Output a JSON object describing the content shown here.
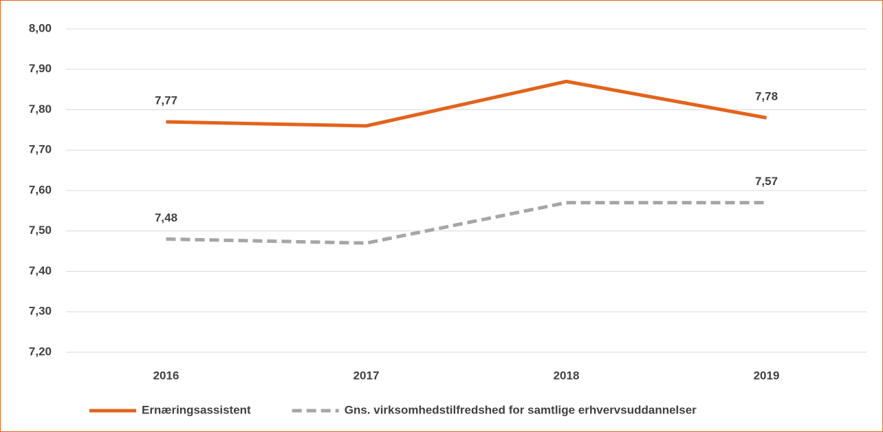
{
  "chart_data": {
    "type": "line",
    "categories": [
      "2016",
      "2017",
      "2018",
      "2019"
    ],
    "series": [
      {
        "name": "Ernæringsassistent",
        "color": "#e3631c",
        "dash": false,
        "values": [
          7.77,
          7.76,
          7.87,
          7.78
        ],
        "value_labels": [
          "7,77",
          null,
          null,
          "7,78"
        ]
      },
      {
        "name": "Gns. virksomhedstilfredshed for samtlige erhvervsuddannelser",
        "color": "#a6a6a6",
        "dash": true,
        "values": [
          7.48,
          7.47,
          7.57,
          7.57
        ],
        "value_labels": [
          "7,48",
          null,
          null,
          "7,57"
        ]
      }
    ],
    "ylim": [
      7.2,
      8.0
    ],
    "yticks": [
      {
        "value": 7.2,
        "label": "7,20"
      },
      {
        "value": 7.3,
        "label": "7,30"
      },
      {
        "value": 7.4,
        "label": "7,40"
      },
      {
        "value": 7.5,
        "label": "7,50"
      },
      {
        "value": 7.6,
        "label": "7,60"
      },
      {
        "value": 7.7,
        "label": "7,70"
      },
      {
        "value": 7.8,
        "label": "7,80"
      },
      {
        "value": 7.9,
        "label": "7,90"
      },
      {
        "value": 8.0,
        "label": "8,00"
      }
    ],
    "grid": true,
    "legend": "bottom"
  }
}
